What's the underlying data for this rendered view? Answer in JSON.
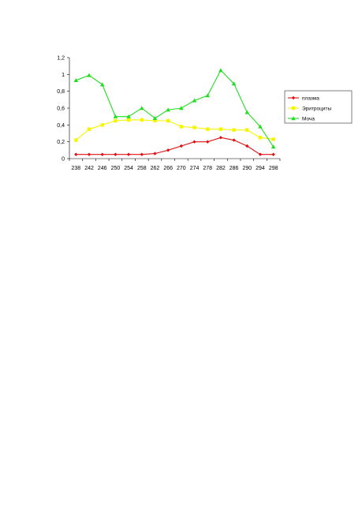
{
  "chart_data": {
    "type": "line",
    "title": "",
    "xlabel": "",
    "ylabel": "",
    "x": [
      238,
      242,
      246,
      250,
      254,
      258,
      262,
      266,
      270,
      274,
      278,
      282,
      286,
      290,
      294,
      298
    ],
    "x_tick_labels": [
      "238",
      "242",
      "246",
      "250",
      "254",
      "258",
      "262",
      "266",
      "270",
      "274",
      "278",
      "282",
      "286",
      "290",
      "294",
      "298"
    ],
    "ylim": [
      0,
      1.2
    ],
    "y_ticks": [
      0,
      0.2,
      0.4,
      0.6,
      0.8,
      1,
      1.2
    ],
    "y_tick_labels": [
      "0",
      "0,2",
      "0,4",
      "0,6",
      "0,8",
      "1",
      "1,2"
    ],
    "grid": false,
    "legend_position": "right",
    "series": [
      {
        "name": "плазма",
        "color": "#e01010",
        "marker": "diamond",
        "values": [
          0.05,
          0.05,
          0.05,
          0.05,
          0.05,
          0.05,
          0.06,
          0.1,
          0.15,
          0.2,
          0.2,
          0.25,
          0.22,
          0.15,
          0.05,
          0.05
        ]
      },
      {
        "name": "Эритроциты",
        "color": "#f5f500",
        "marker": "square",
        "values": [
          0.22,
          0.35,
          0.4,
          0.45,
          0.46,
          0.46,
          0.45,
          0.45,
          0.38,
          0.37,
          0.35,
          0.35,
          0.34,
          0.34,
          0.25,
          0.23
        ]
      },
      {
        "name": "Моча",
        "color": "#22dd22",
        "marker": "triangle",
        "values": [
          0.93,
          0.99,
          0.88,
          0.5,
          0.5,
          0.6,
          0.48,
          0.58,
          0.6,
          0.69,
          0.75,
          1.05,
          0.89,
          0.55,
          0.38,
          0.14
        ]
      }
    ]
  }
}
